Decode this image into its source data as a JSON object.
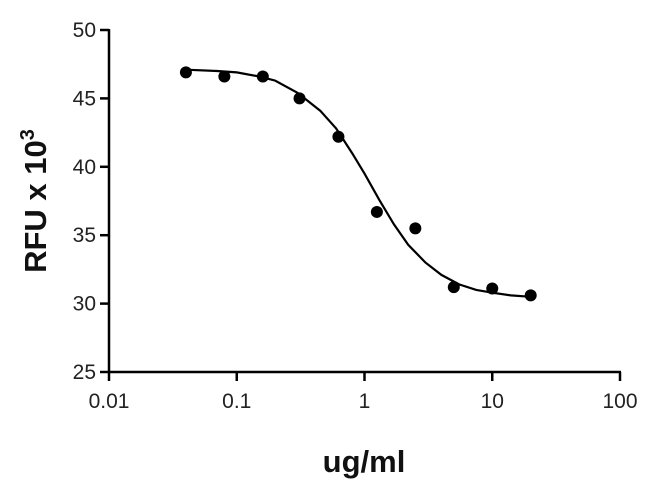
{
  "chart_data": {
    "type": "scatter",
    "xlabel": "ug/ml",
    "ylabel": "RFU x 10",
    "ylabel_exponent": "3",
    "x": [
      0.04,
      0.08,
      0.16,
      0.31,
      0.625,
      1.25,
      2.5,
      5,
      10,
      20
    ],
    "values": [
      46.9,
      46.6,
      46.6,
      45.0,
      42.2,
      36.7,
      35.5,
      31.2,
      31.1,
      30.6
    ],
    "color": "#000000",
    "curve": {
      "x": [
        0.04,
        0.07,
        0.1,
        0.15,
        0.2,
        0.3,
        0.45,
        0.6,
        0.8,
        1,
        1.3,
        1.7,
        2.2,
        3,
        4,
        5.5,
        7.5,
        10,
        14,
        20
      ],
      "y": [
        47.1,
        47.0,
        46.9,
        46.6,
        46.3,
        45.4,
        44.1,
        42.8,
        41.0,
        39.5,
        37.6,
        35.8,
        34.3,
        33.0,
        32.1,
        31.4,
        31.0,
        30.8,
        30.6,
        30.5
      ]
    },
    "xscale": "log",
    "xlim": [
      0.01,
      100
    ],
    "xticks": [
      0.01,
      0.1,
      1,
      10,
      100
    ],
    "ylim": [
      25,
      50
    ],
    "yticks": [
      25,
      30,
      35,
      40,
      45,
      50
    ],
    "grid": false
  }
}
